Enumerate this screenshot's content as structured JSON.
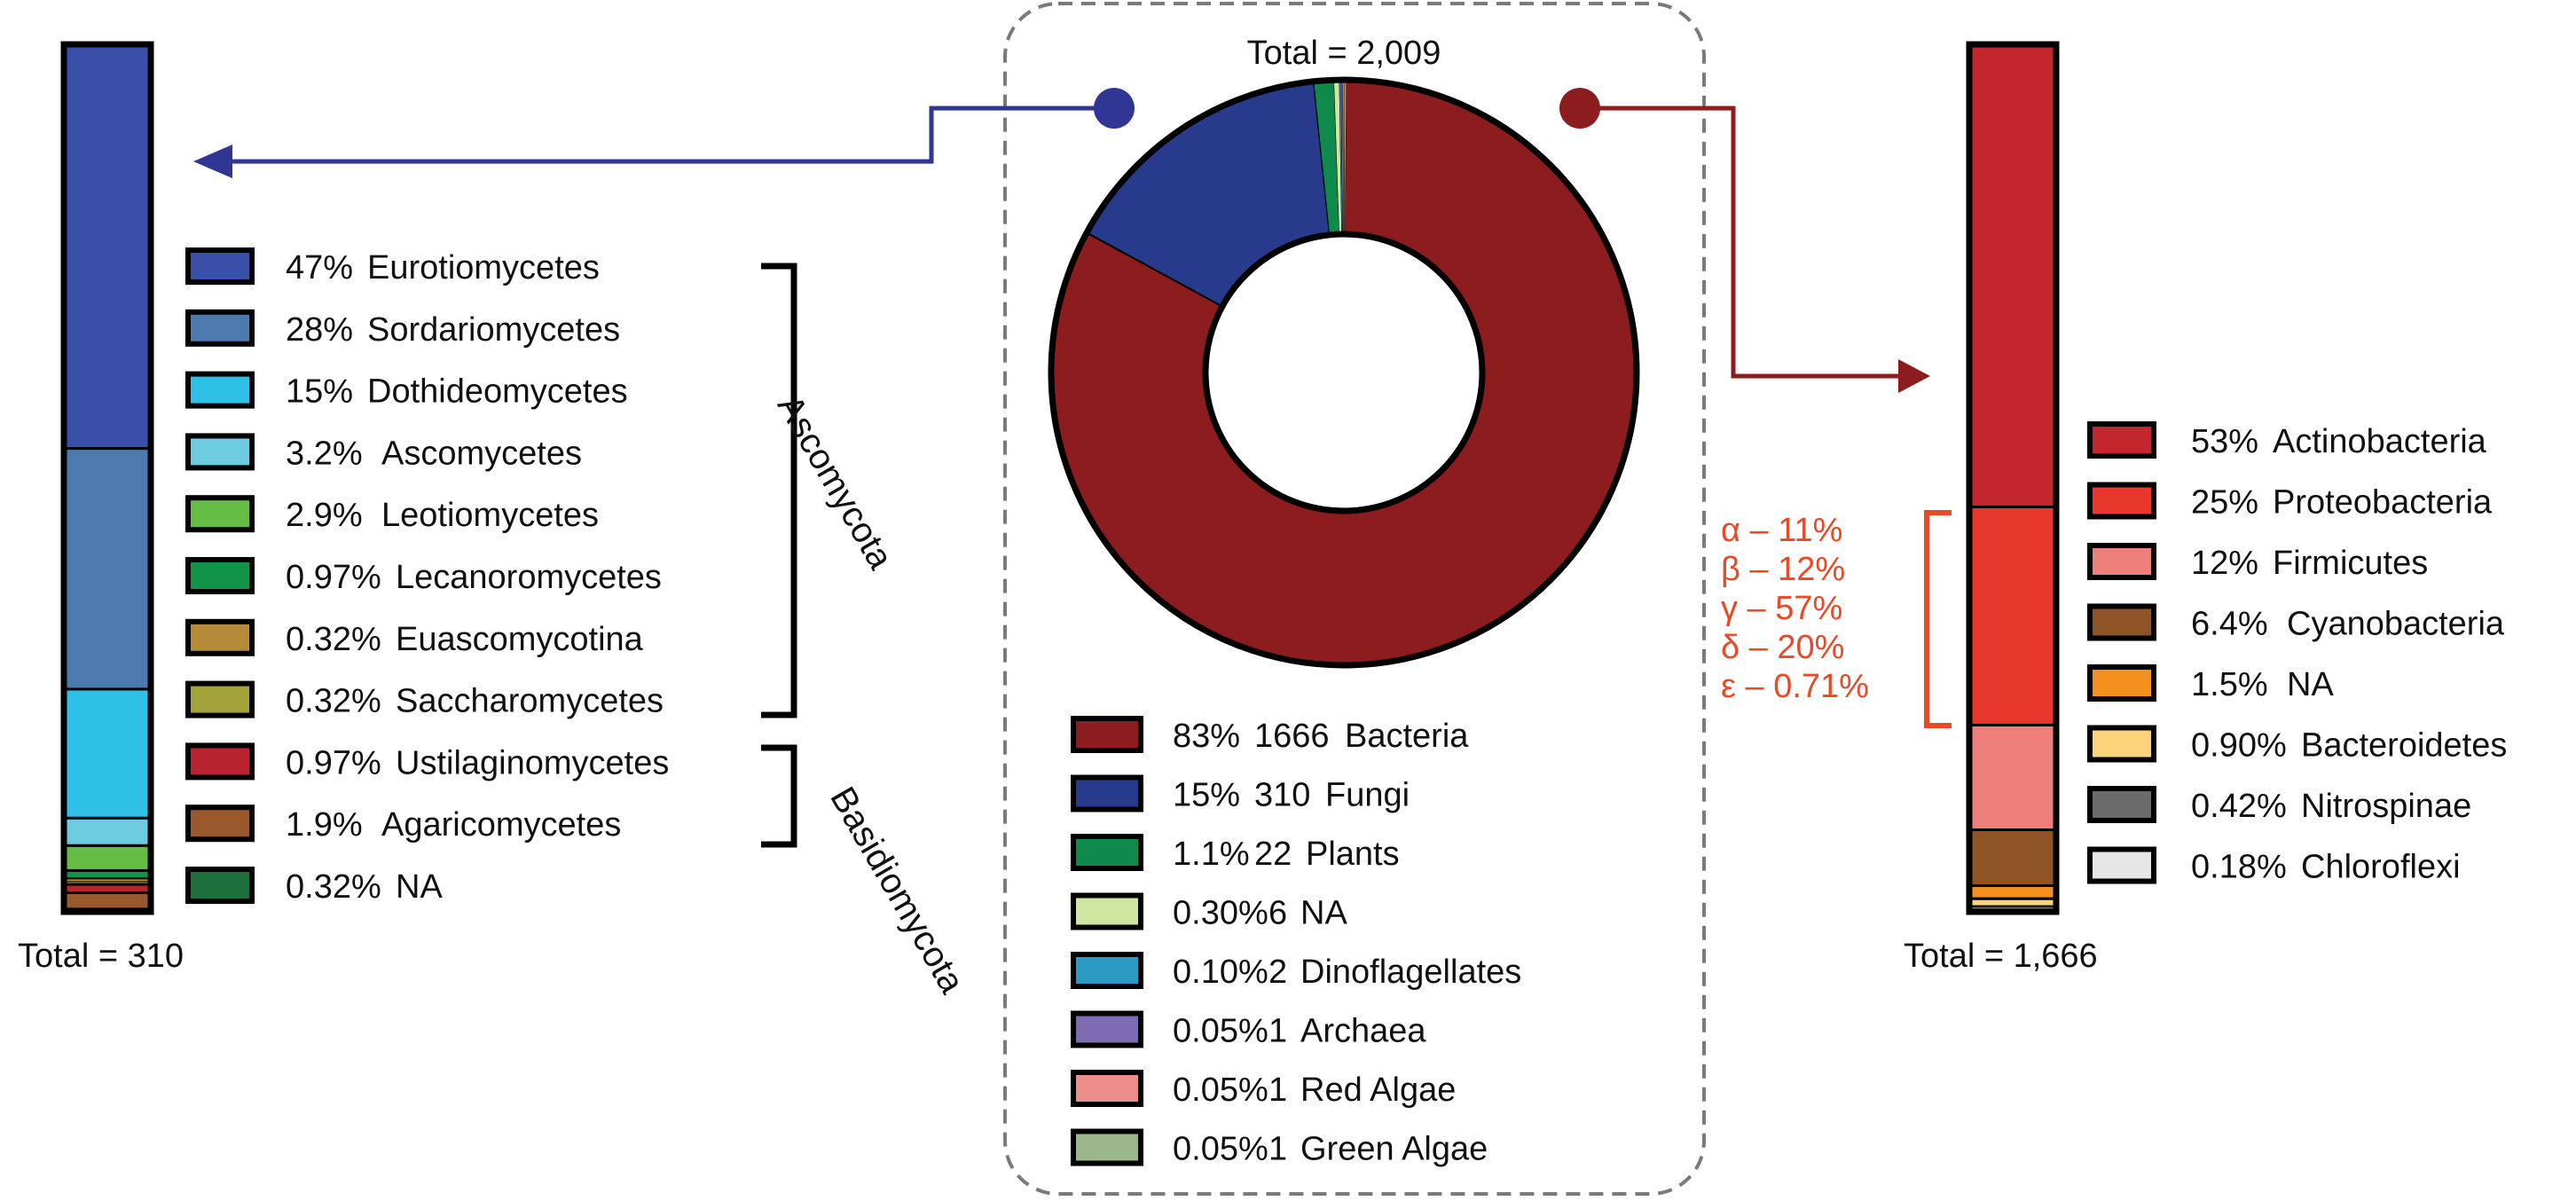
{
  "chart_data": [
    {
      "type": "pie",
      "variant": "donut",
      "total_label": "Total = 2,009",
      "total": 2009,
      "slices": [
        {
          "percent": "83%",
          "count": "1666",
          "label": "Bacteria",
          "value": 1666,
          "color": "#8c1c1e"
        },
        {
          "percent": "15%",
          "count": "310",
          "label": "Fungi",
          "value": 310,
          "color": "#283a8c"
        },
        {
          "percent": "1.1%",
          "count": "22",
          "label": "Plants",
          "value": 22,
          "color": "#0f8a4c"
        },
        {
          "percent": "0.30%",
          "count": "6",
          "label": "NA",
          "value": 6,
          "color": "#cfe6a0"
        },
        {
          "percent": "0.10%",
          "count": "2",
          "label": "Dinoflagellates",
          "value": 2,
          "color": "#2b9bc4"
        },
        {
          "percent": "0.05%",
          "count": "1",
          "label": "Archaea",
          "value": 1,
          "color": "#7e6bb2"
        },
        {
          "percent": "0.05%",
          "count": "1",
          "label": "Red Algae",
          "value": 1,
          "color": "#ec8e8a"
        },
        {
          "percent": "0.05%",
          "count": "1",
          "label": "Green Algae",
          "value": 1,
          "color": "#9cb78a"
        }
      ]
    },
    {
      "type": "bar",
      "variant": "stacked-100",
      "total_label": "Total = 310",
      "segments": [
        {
          "percent": "47%",
          "label": "Eurotiomycetes",
          "value": 47,
          "color": "#3a4fa7"
        },
        {
          "percent": "28%",
          "label": "Sordariomycetes",
          "value": 28,
          "color": "#4c7aaf"
        },
        {
          "percent": "15%",
          "label": "Dothideomycetes",
          "value": 15,
          "color": "#2ec0e6"
        },
        {
          "percent": "3.2%",
          "label": "Ascomycetes",
          "value": 3.2,
          "color": "#6ccbde"
        },
        {
          "percent": "2.9%",
          "label": "Leotiomycetes",
          "value": 2.9,
          "color": "#66bd45"
        },
        {
          "percent": "0.97%",
          "label": "Lecanoromycetes",
          "value": 0.97,
          "color": "#12934a"
        },
        {
          "percent": "0.32%",
          "label": "Euascomycotina",
          "value": 0.32,
          "color": "#b58a38"
        },
        {
          "percent": "0.32%",
          "label": "Saccharomycetes",
          "value": 0.32,
          "color": "#a3a13a"
        },
        {
          "percent": "0.97%",
          "label": "Ustilaginomycetes",
          "value": 0.97,
          "color": "#b82330"
        },
        {
          "percent": "1.9%",
          "label": "Agaricomycetes",
          "value": 1.9,
          "color": "#99592d"
        },
        {
          "percent": "0.32%",
          "label": "NA",
          "value": 0.32,
          "color": "#1d6f3b"
        }
      ],
      "groups": [
        {
          "label": "Ascomycota",
          "members": [
            0,
            7
          ]
        },
        {
          "label": "Basidiomycota",
          "members": [
            8,
            9
          ]
        }
      ]
    },
    {
      "type": "bar",
      "variant": "stacked-100",
      "total_label": "Total = 1,666",
      "segments": [
        {
          "percent": "53%",
          "label": "Actinobacteria",
          "value": 53,
          "color": "#c1272d"
        },
        {
          "percent": "25%",
          "label": "Proteobacteria",
          "value": 25,
          "color": "#e8382e"
        },
        {
          "percent": "12%",
          "label": "Firmicutes",
          "value": 12,
          "color": "#ef7f7a"
        },
        {
          "percent": "6.4%",
          "label": "Cyanobacteria",
          "value": 6.4,
          "color": "#8e5426"
        },
        {
          "percent": "1.5%",
          "label": "NA",
          "value": 1.5,
          "color": "#f4901e"
        },
        {
          "percent": "0.90%",
          "label": "Bacteroidetes",
          "value": 0.9,
          "color": "#fbd37a"
        },
        {
          "percent": "0.42%",
          "label": "Nitrospinae",
          "value": 0.42,
          "color": "#6b6b6b"
        },
        {
          "percent": "0.18%",
          "label": "Chloroflexi",
          "value": 0.18,
          "color": "#e6e6e6"
        }
      ],
      "proteobacteria_breakdown": [
        "α – 11%",
        "β – 12%",
        "γ – 57%",
        "δ – 20%",
        "ε – 0.71%"
      ]
    }
  ],
  "colors": {
    "fungi_arrow": "#2f3694",
    "bacteria_arrow": "#8c1c1e",
    "proteo_bracket": "#e84a27"
  }
}
